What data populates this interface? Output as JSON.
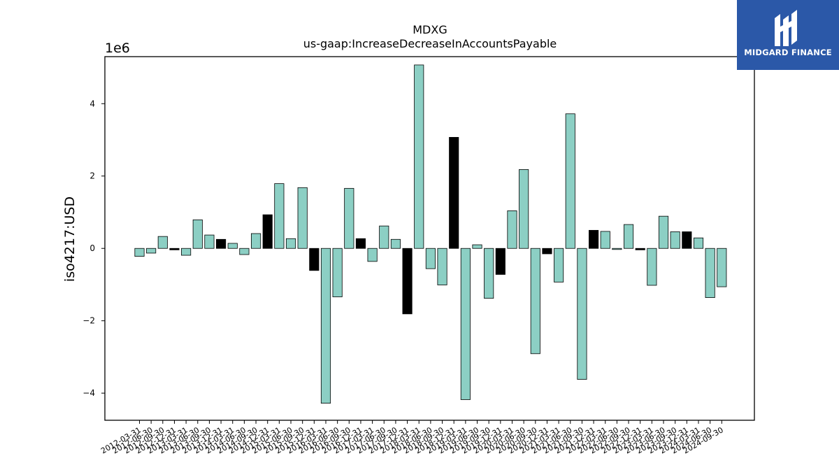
{
  "brand": {
    "name": "MIDGARD FINANCE",
    "color": "#2b58a8"
  },
  "chart_data": {
    "type": "bar",
    "title": "MDXG",
    "subtitle": "us-gaap:IncreaseDecreaseInAccountsPayable",
    "ylabel": "iso4217:USD",
    "xlabel": "",
    "offset_label": "1e6",
    "ylim": [
      -4.75,
      5.3
    ],
    "yticks": [
      -4,
      -2,
      0,
      2,
      4
    ],
    "ytick_labels": [
      "−4",
      "−2",
      "0",
      "2",
      "4"
    ],
    "grid": false,
    "colors": {
      "default": "#8ccfc4",
      "highlight": "#000000",
      "edge": "#000000"
    },
    "categories": [
      "2012-03-31",
      "2012-06-30",
      "2012-09-30",
      "2012-12-31",
      "2013-03-31",
      "2013-06-30",
      "2013-09-30",
      "2013-12-31",
      "2014-03-31",
      "2014-06-30",
      "2014-09-30",
      "2014-12-31",
      "2015-03-31",
      "2015-06-30",
      "2015-09-30",
      "2015-12-31",
      "2016-03-31",
      "2016-06-30",
      "2016-09-30",
      "2016-12-31",
      "2017-03-31",
      "2017-06-30",
      "2017-09-30",
      "2017-12-31",
      "2018-03-31",
      "2018-06-30",
      "2018-09-30",
      "2018-12-31",
      "2019-03-31",
      "2019-06-30",
      "2019-09-30",
      "2019-12-31",
      "2020-03-31",
      "2020-06-30",
      "2020-09-30",
      "2020-12-31",
      "2021-03-31",
      "2021-06-30",
      "2021-09-30",
      "2021-12-31",
      "2022-03-31",
      "2022-06-30",
      "2022-09-30",
      "2022-12-31",
      "2023-03-31",
      "2023-06-30",
      "2023-09-30",
      "2023-12-31",
      "2024-03-31",
      "2024-06-30",
      "2024-09-30"
    ],
    "values": [
      -0.22,
      -0.13,
      0.33,
      -0.04,
      -0.19,
      0.79,
      0.37,
      0.25,
      0.14,
      -0.17,
      0.41,
      0.93,
      1.79,
      0.27,
      1.68,
      -0.61,
      -4.28,
      -1.34,
      1.66,
      0.27,
      -0.36,
      0.62,
      0.25,
      -1.81,
      5.07,
      -0.56,
      -1.01,
      3.07,
      -4.18,
      0.1,
      -1.38,
      -0.72,
      1.04,
      2.18,
      -2.91,
      -0.15,
      -0.93,
      3.72,
      -3.62,
      0.5,
      0.47,
      -0.03,
      0.66,
      -0.04,
      -1.02,
      0.89,
      0.46,
      0.46,
      0.29,
      -1.36,
      -1.06
    ],
    "highlight": [
      false,
      false,
      false,
      true,
      false,
      false,
      false,
      true,
      false,
      false,
      false,
      true,
      false,
      false,
      false,
      true,
      false,
      false,
      false,
      true,
      false,
      false,
      false,
      true,
      false,
      false,
      false,
      true,
      false,
      false,
      false,
      true,
      false,
      false,
      false,
      true,
      false,
      false,
      false,
      true,
      false,
      false,
      false,
      true,
      false,
      false,
      false,
      true,
      false,
      false,
      false
    ]
  }
}
